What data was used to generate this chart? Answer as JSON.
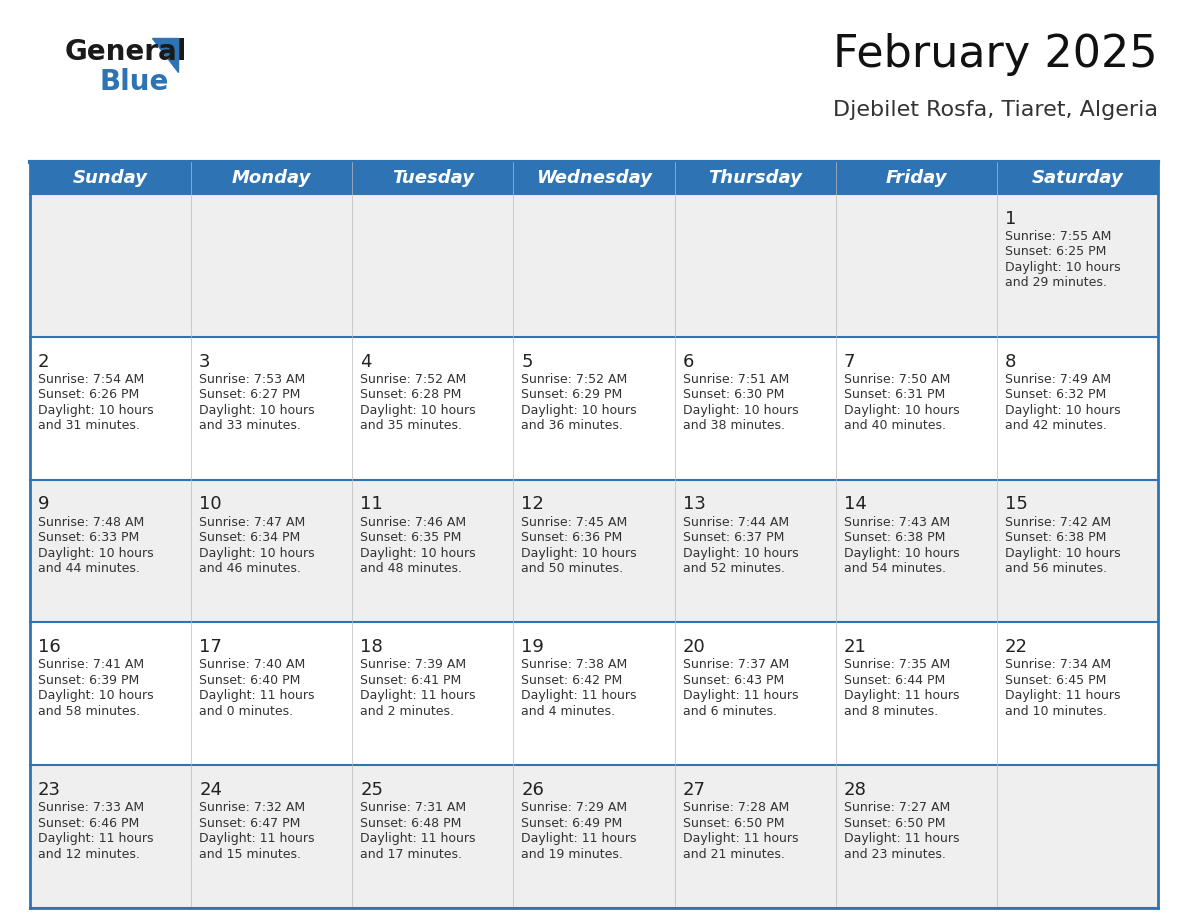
{
  "title": "February 2025",
  "subtitle": "Djebilet Rosfa, Tiaret, Algeria",
  "header_bg": "#2E74B5",
  "header_text": "#FFFFFF",
  "row0_bg": "#EFEFEF",
  "row1_bg": "#EFEFEF",
  "row2_bg": "#FFFFFF",
  "row3_bg": "#EFEFEF",
  "row4_bg": "#FFFFFF",
  "day_headers": [
    "Sunday",
    "Monday",
    "Tuesday",
    "Wednesday",
    "Thursday",
    "Friday",
    "Saturday"
  ],
  "calendar": [
    [
      null,
      null,
      null,
      null,
      null,
      null,
      {
        "day": 1,
        "sunrise": "7:55 AM",
        "sunset": "6:25 PM",
        "daylight": "10 hours",
        "daylight2": "and 29 minutes."
      }
    ],
    [
      {
        "day": 2,
        "sunrise": "7:54 AM",
        "sunset": "6:26 PM",
        "daylight": "10 hours",
        "daylight2": "and 31 minutes."
      },
      {
        "day": 3,
        "sunrise": "7:53 AM",
        "sunset": "6:27 PM",
        "daylight": "10 hours",
        "daylight2": "and 33 minutes."
      },
      {
        "day": 4,
        "sunrise": "7:52 AM",
        "sunset": "6:28 PM",
        "daylight": "10 hours",
        "daylight2": "and 35 minutes."
      },
      {
        "day": 5,
        "sunrise": "7:52 AM",
        "sunset": "6:29 PM",
        "daylight": "10 hours",
        "daylight2": "and 36 minutes."
      },
      {
        "day": 6,
        "sunrise": "7:51 AM",
        "sunset": "6:30 PM",
        "daylight": "10 hours",
        "daylight2": "and 38 minutes."
      },
      {
        "day": 7,
        "sunrise": "7:50 AM",
        "sunset": "6:31 PM",
        "daylight": "10 hours",
        "daylight2": "and 40 minutes."
      },
      {
        "day": 8,
        "sunrise": "7:49 AM",
        "sunset": "6:32 PM",
        "daylight": "10 hours",
        "daylight2": "and 42 minutes."
      }
    ],
    [
      {
        "day": 9,
        "sunrise": "7:48 AM",
        "sunset": "6:33 PM",
        "daylight": "10 hours",
        "daylight2": "and 44 minutes."
      },
      {
        "day": 10,
        "sunrise": "7:47 AM",
        "sunset": "6:34 PM",
        "daylight": "10 hours",
        "daylight2": "and 46 minutes."
      },
      {
        "day": 11,
        "sunrise": "7:46 AM",
        "sunset": "6:35 PM",
        "daylight": "10 hours",
        "daylight2": "and 48 minutes."
      },
      {
        "day": 12,
        "sunrise": "7:45 AM",
        "sunset": "6:36 PM",
        "daylight": "10 hours",
        "daylight2": "and 50 minutes."
      },
      {
        "day": 13,
        "sunrise": "7:44 AM",
        "sunset": "6:37 PM",
        "daylight": "10 hours",
        "daylight2": "and 52 minutes."
      },
      {
        "day": 14,
        "sunrise": "7:43 AM",
        "sunset": "6:38 PM",
        "daylight": "10 hours",
        "daylight2": "and 54 minutes."
      },
      {
        "day": 15,
        "sunrise": "7:42 AM",
        "sunset": "6:38 PM",
        "daylight": "10 hours",
        "daylight2": "and 56 minutes."
      }
    ],
    [
      {
        "day": 16,
        "sunrise": "7:41 AM",
        "sunset": "6:39 PM",
        "daylight": "10 hours",
        "daylight2": "and 58 minutes."
      },
      {
        "day": 17,
        "sunrise": "7:40 AM",
        "sunset": "6:40 PM",
        "daylight": "11 hours",
        "daylight2": "and 0 minutes."
      },
      {
        "day": 18,
        "sunrise": "7:39 AM",
        "sunset": "6:41 PM",
        "daylight": "11 hours",
        "daylight2": "and 2 minutes."
      },
      {
        "day": 19,
        "sunrise": "7:38 AM",
        "sunset": "6:42 PM",
        "daylight": "11 hours",
        "daylight2": "and 4 minutes."
      },
      {
        "day": 20,
        "sunrise": "7:37 AM",
        "sunset": "6:43 PM",
        "daylight": "11 hours",
        "daylight2": "and 6 minutes."
      },
      {
        "day": 21,
        "sunrise": "7:35 AM",
        "sunset": "6:44 PM",
        "daylight": "11 hours",
        "daylight2": "and 8 minutes."
      },
      {
        "day": 22,
        "sunrise": "7:34 AM",
        "sunset": "6:45 PM",
        "daylight": "11 hours",
        "daylight2": "and 10 minutes."
      }
    ],
    [
      {
        "day": 23,
        "sunrise": "7:33 AM",
        "sunset": "6:46 PM",
        "daylight": "11 hours",
        "daylight2": "and 12 minutes."
      },
      {
        "day": 24,
        "sunrise": "7:32 AM",
        "sunset": "6:47 PM",
        "daylight": "11 hours",
        "daylight2": "and 15 minutes."
      },
      {
        "day": 25,
        "sunrise": "7:31 AM",
        "sunset": "6:48 PM",
        "daylight": "11 hours",
        "daylight2": "and 17 minutes."
      },
      {
        "day": 26,
        "sunrise": "7:29 AM",
        "sunset": "6:49 PM",
        "daylight": "11 hours",
        "daylight2": "and 19 minutes."
      },
      {
        "day": 27,
        "sunrise": "7:28 AM",
        "sunset": "6:50 PM",
        "daylight": "11 hours",
        "daylight2": "and 21 minutes."
      },
      {
        "day": 28,
        "sunrise": "7:27 AM",
        "sunset": "6:50 PM",
        "daylight": "11 hours",
        "daylight2": "and 23 minutes."
      },
      null
    ]
  ],
  "num_rows": 5,
  "num_cols": 7,
  "title_fontsize": 32,
  "subtitle_fontsize": 16,
  "day_header_fontsize": 13,
  "day_num_fontsize": 13,
  "cell_text_fontsize": 9,
  "separator_color": "#2E74B5",
  "text_color": "#333333"
}
